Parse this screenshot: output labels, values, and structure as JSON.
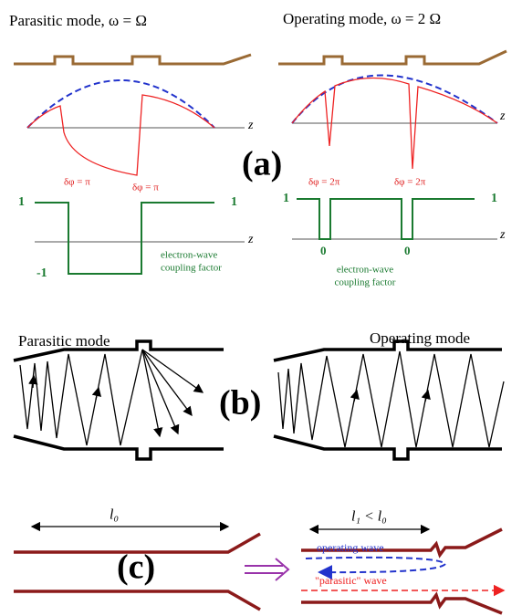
{
  "panel_a": {
    "label": "(a)",
    "left": {
      "title": "Parasitic mode,  ω = Ω",
      "z_top": "z",
      "z_bottom": "z",
      "phase_labels": [
        "δφ = π",
        "δφ = π"
      ],
      "level_labels": [
        "1",
        "-1",
        "1"
      ],
      "coupling_label": [
        "electron-wave",
        "coupling factor"
      ]
    },
    "right": {
      "title": "Operating mode, ω = 2 Ω",
      "z_top": "z",
      "z_bottom": "z",
      "phase_labels": [
        "δφ = 2π",
        "δφ = 2π"
      ],
      "level_labels": [
        "1",
        "0",
        "0",
        "1"
      ],
      "coupling_label": [
        "electron-wave",
        "coupling factor"
      ]
    }
  },
  "panel_b": {
    "label": "(b)",
    "left_title": "Parasitic mode",
    "right_title": "Operating mode"
  },
  "panel_c": {
    "label": "(c)",
    "left_length": "l₀",
    "right_length": "l₁ < l₀",
    "operating_wave": "operating wave",
    "parasitic_wave": "\"parasitic\" wave"
  }
}
